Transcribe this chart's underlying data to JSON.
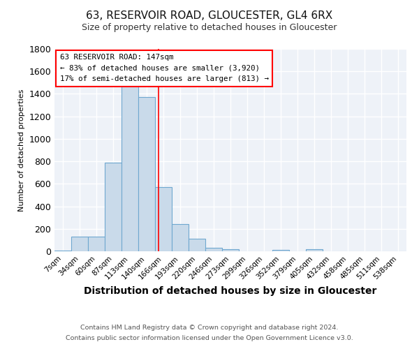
{
  "title1": "63, RESERVOIR ROAD, GLOUCESTER, GL4 6RX",
  "title2": "Size of property relative to detached houses in Gloucester",
  "xlabel": "Distribution of detached houses by size in Gloucester",
  "ylabel": "Number of detached properties",
  "footer1": "Contains HM Land Registry data © Crown copyright and database right 2024.",
  "footer2": "Contains public sector information licensed under the Open Government Licence v3.0.",
  "bin_labels": [
    "7sqm",
    "34sqm",
    "60sqm",
    "87sqm",
    "113sqm",
    "140sqm",
    "166sqm",
    "193sqm",
    "220sqm",
    "246sqm",
    "273sqm",
    "299sqm",
    "326sqm",
    "352sqm",
    "379sqm",
    "405sqm",
    "432sqm",
    "458sqm",
    "485sqm",
    "511sqm",
    "538sqm"
  ],
  "bar_values": [
    5,
    130,
    130,
    790,
    1480,
    1370,
    570,
    240,
    110,
    30,
    20,
    0,
    0,
    10,
    0,
    20,
    0,
    0,
    0,
    0,
    0
  ],
  "bar_color": "#c9daea",
  "bar_edge_color": "#6fa8d0",
  "annotation_title": "63 RESERVOIR ROAD: 147sqm",
  "annotation_line1": "← 83% of detached houses are smaller (3,920)",
  "annotation_line2": "17% of semi-detached houses are larger (813) →",
  "red_line_x": 5.7,
  "ylim": [
    0,
    1800
  ],
  "yticks": [
    0,
    200,
    400,
    600,
    800,
    1000,
    1200,
    1400,
    1600,
    1800
  ],
  "bg_color": "#eef2f8",
  "grid_color": "#ffffff",
  "title1_fontsize": 11,
  "title2_fontsize": 9,
  "ylabel_fontsize": 8,
  "xlabel_fontsize": 10
}
